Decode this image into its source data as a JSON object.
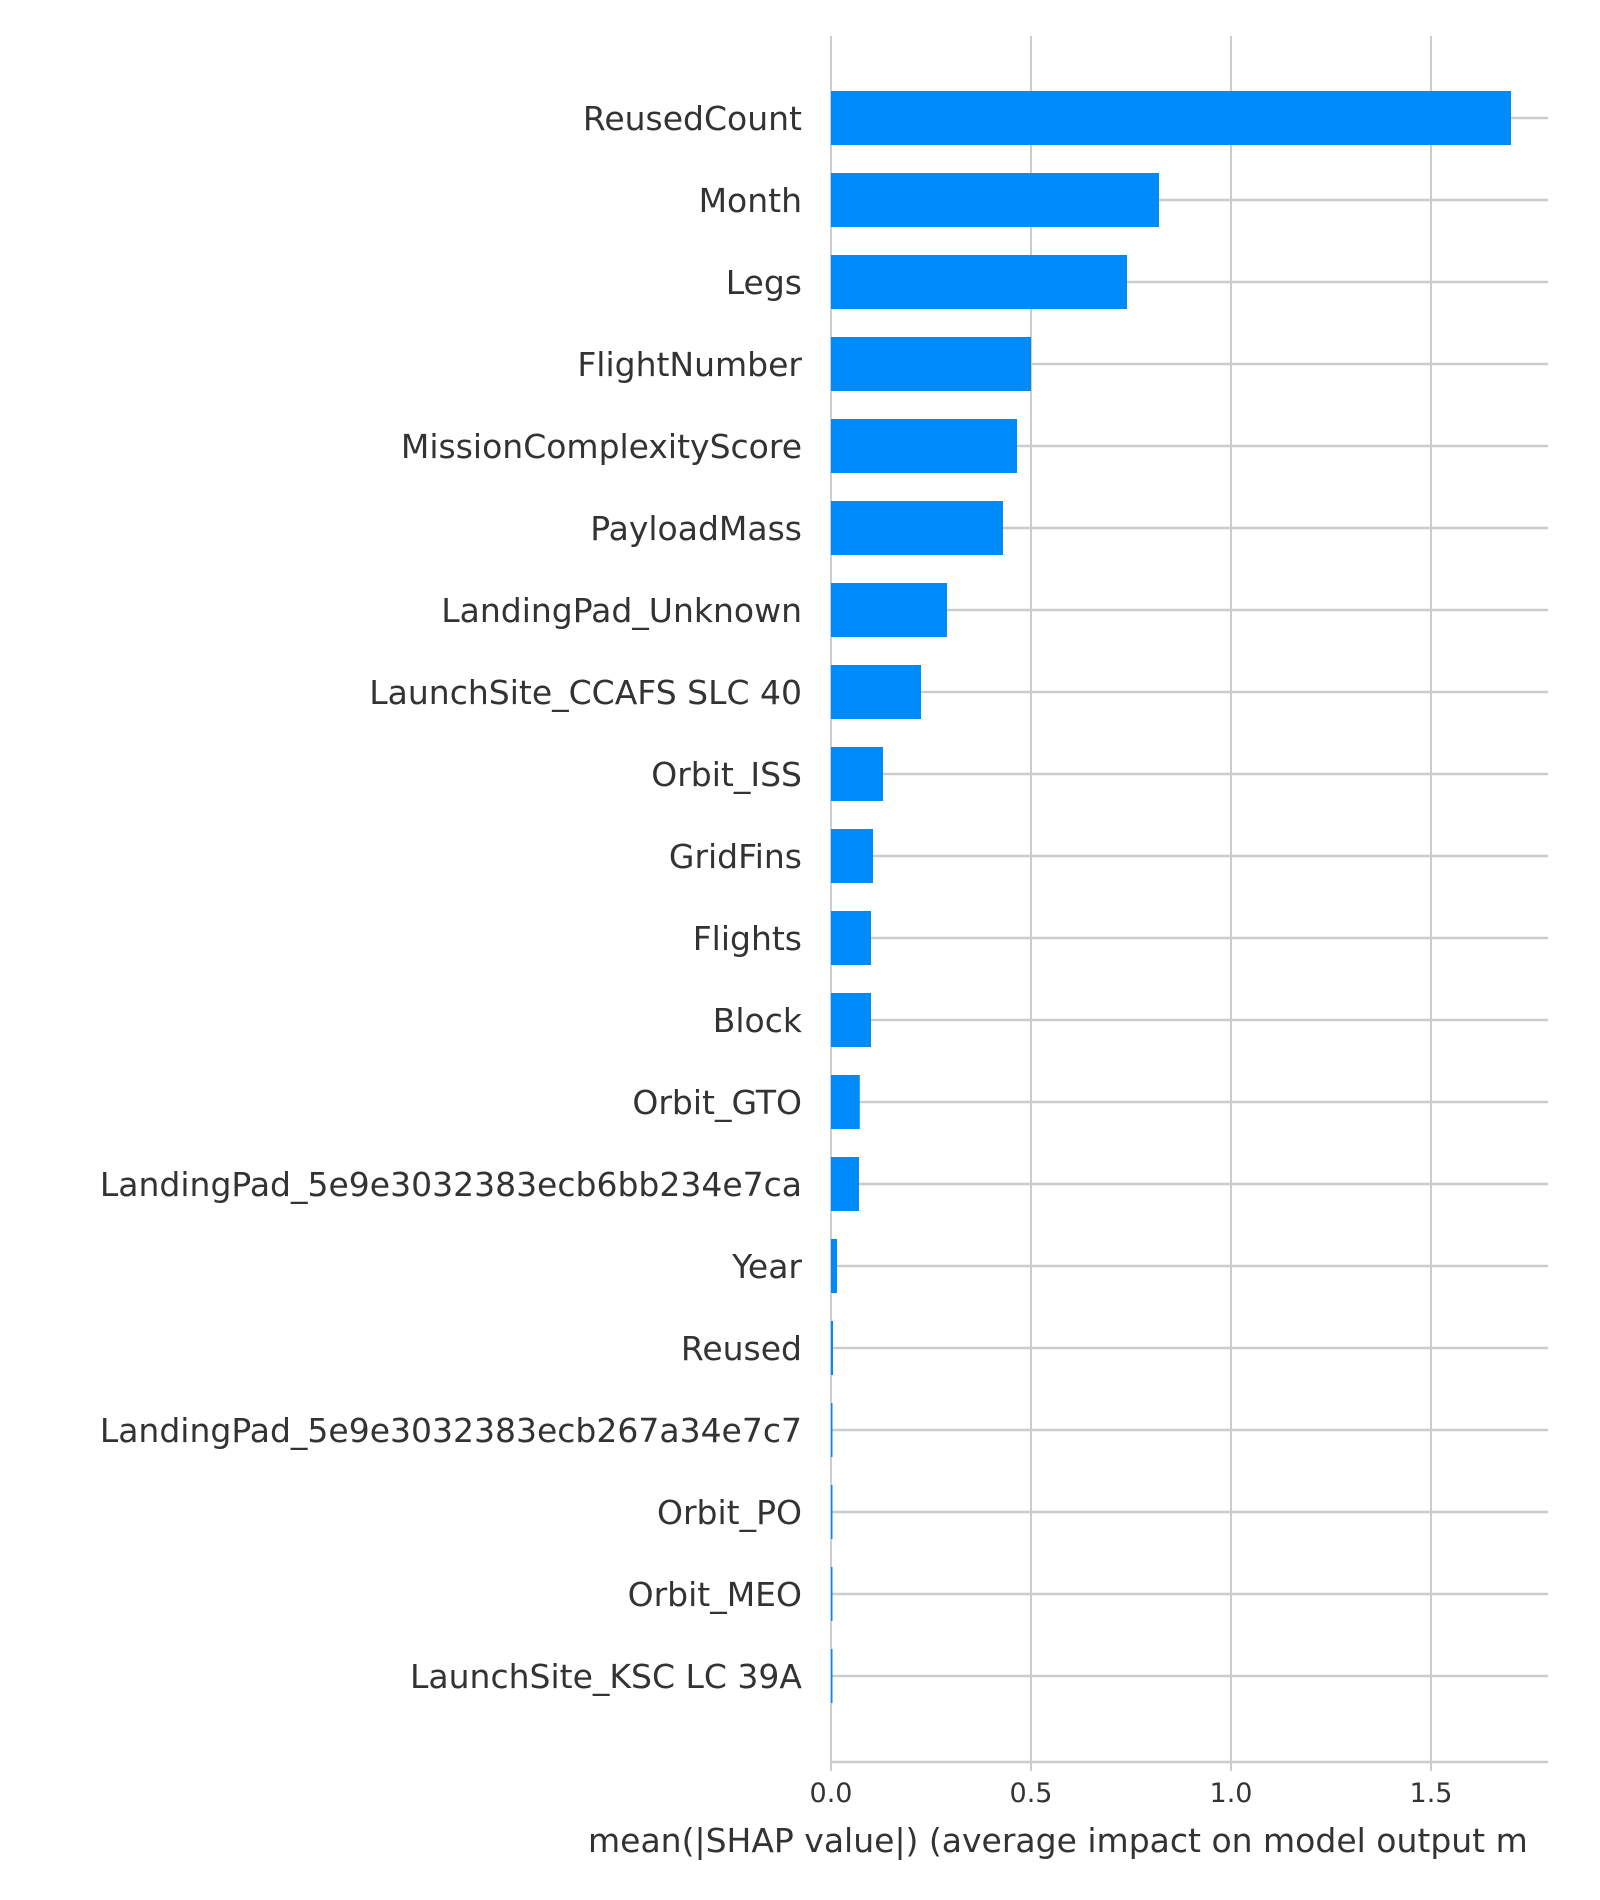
{
  "chart_data": {
    "type": "bar",
    "orientation": "horizontal",
    "categories": [
      "ReusedCount",
      "Month",
      "Legs",
      "FlightNumber",
      "MissionComplexityScore",
      "PayloadMass",
      "LandingPad_Unknown",
      "LaunchSite_CCAFS SLC 40",
      "Orbit_ISS",
      "GridFins",
      "Flights",
      "Block",
      "Orbit_GTO",
      "LandingPad_5e9e3032383ecb6bb234e7ca",
      "Year",
      "Reused",
      "LandingPad_5e9e3032383ecb267a34e7c7",
      "Orbit_PO",
      "Orbit_MEO",
      "LaunchSite_KSC LC 39A"
    ],
    "values": [
      1.7,
      0.82,
      0.74,
      0.5,
      0.465,
      0.43,
      0.29,
      0.225,
      0.13,
      0.105,
      0.1,
      0.1,
      0.072,
      0.07,
      0.015,
      0.005,
      0.003,
      0.002,
      0.001,
      0.001
    ],
    "xlabel": "mean(|SHAP value|) (average impact on model output m",
    "ylabel": "",
    "title": "",
    "xlim": [
      0,
      1.8
    ],
    "xticks": [
      0.0,
      0.5,
      1.0,
      1.5
    ],
    "xtick_labels": [
      "0.0",
      "0.5",
      "1.0",
      "1.5"
    ],
    "grid": true,
    "colors": {
      "bar": "#008bfb",
      "grid": "#cccccc",
      "text": "#333333"
    }
  }
}
